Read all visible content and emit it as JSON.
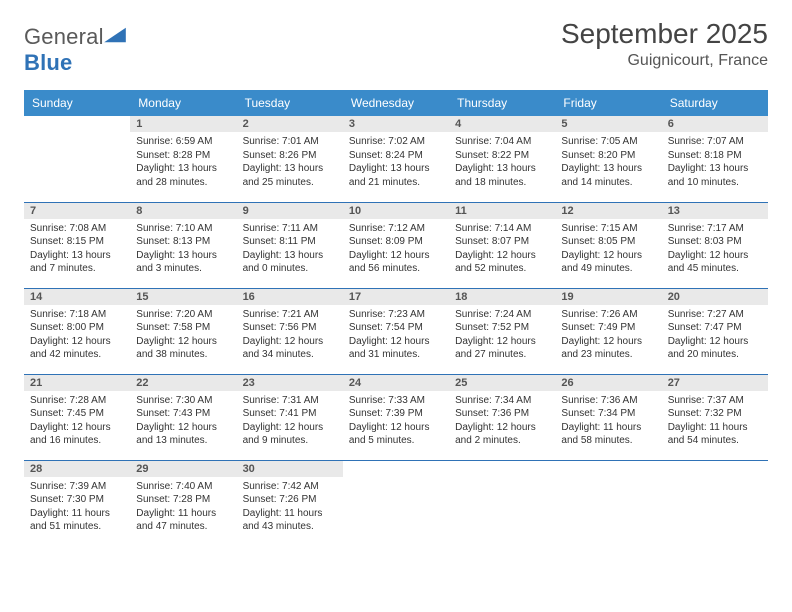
{
  "logo": {
    "general": "General",
    "blue": "Blue"
  },
  "header": {
    "title": "September 2025",
    "location": "Guignicourt, France"
  },
  "colors": {
    "header_bg": "#3a8bca",
    "header_text": "#ffffff",
    "daynum_bg": "#e9e9e9",
    "row_border": "#2f72b6",
    "logo_accent": "#2f72b6"
  },
  "weekdays": [
    "Sunday",
    "Monday",
    "Tuesday",
    "Wednesday",
    "Thursday",
    "Friday",
    "Saturday"
  ],
  "weeks": [
    [
      {
        "n": "",
        "sr": "",
        "ss": "",
        "dl": ""
      },
      {
        "n": "1",
        "sr": "Sunrise: 6:59 AM",
        "ss": "Sunset: 8:28 PM",
        "dl": "Daylight: 13 hours and 28 minutes."
      },
      {
        "n": "2",
        "sr": "Sunrise: 7:01 AM",
        "ss": "Sunset: 8:26 PM",
        "dl": "Daylight: 13 hours and 25 minutes."
      },
      {
        "n": "3",
        "sr": "Sunrise: 7:02 AM",
        "ss": "Sunset: 8:24 PM",
        "dl": "Daylight: 13 hours and 21 minutes."
      },
      {
        "n": "4",
        "sr": "Sunrise: 7:04 AM",
        "ss": "Sunset: 8:22 PM",
        "dl": "Daylight: 13 hours and 18 minutes."
      },
      {
        "n": "5",
        "sr": "Sunrise: 7:05 AM",
        "ss": "Sunset: 8:20 PM",
        "dl": "Daylight: 13 hours and 14 minutes."
      },
      {
        "n": "6",
        "sr": "Sunrise: 7:07 AM",
        "ss": "Sunset: 8:18 PM",
        "dl": "Daylight: 13 hours and 10 minutes."
      }
    ],
    [
      {
        "n": "7",
        "sr": "Sunrise: 7:08 AM",
        "ss": "Sunset: 8:15 PM",
        "dl": "Daylight: 13 hours and 7 minutes."
      },
      {
        "n": "8",
        "sr": "Sunrise: 7:10 AM",
        "ss": "Sunset: 8:13 PM",
        "dl": "Daylight: 13 hours and 3 minutes."
      },
      {
        "n": "9",
        "sr": "Sunrise: 7:11 AM",
        "ss": "Sunset: 8:11 PM",
        "dl": "Daylight: 13 hours and 0 minutes."
      },
      {
        "n": "10",
        "sr": "Sunrise: 7:12 AM",
        "ss": "Sunset: 8:09 PM",
        "dl": "Daylight: 12 hours and 56 minutes."
      },
      {
        "n": "11",
        "sr": "Sunrise: 7:14 AM",
        "ss": "Sunset: 8:07 PM",
        "dl": "Daylight: 12 hours and 52 minutes."
      },
      {
        "n": "12",
        "sr": "Sunrise: 7:15 AM",
        "ss": "Sunset: 8:05 PM",
        "dl": "Daylight: 12 hours and 49 minutes."
      },
      {
        "n": "13",
        "sr": "Sunrise: 7:17 AM",
        "ss": "Sunset: 8:03 PM",
        "dl": "Daylight: 12 hours and 45 minutes."
      }
    ],
    [
      {
        "n": "14",
        "sr": "Sunrise: 7:18 AM",
        "ss": "Sunset: 8:00 PM",
        "dl": "Daylight: 12 hours and 42 minutes."
      },
      {
        "n": "15",
        "sr": "Sunrise: 7:20 AM",
        "ss": "Sunset: 7:58 PM",
        "dl": "Daylight: 12 hours and 38 minutes."
      },
      {
        "n": "16",
        "sr": "Sunrise: 7:21 AM",
        "ss": "Sunset: 7:56 PM",
        "dl": "Daylight: 12 hours and 34 minutes."
      },
      {
        "n": "17",
        "sr": "Sunrise: 7:23 AM",
        "ss": "Sunset: 7:54 PM",
        "dl": "Daylight: 12 hours and 31 minutes."
      },
      {
        "n": "18",
        "sr": "Sunrise: 7:24 AM",
        "ss": "Sunset: 7:52 PM",
        "dl": "Daylight: 12 hours and 27 minutes."
      },
      {
        "n": "19",
        "sr": "Sunrise: 7:26 AM",
        "ss": "Sunset: 7:49 PM",
        "dl": "Daylight: 12 hours and 23 minutes."
      },
      {
        "n": "20",
        "sr": "Sunrise: 7:27 AM",
        "ss": "Sunset: 7:47 PM",
        "dl": "Daylight: 12 hours and 20 minutes."
      }
    ],
    [
      {
        "n": "21",
        "sr": "Sunrise: 7:28 AM",
        "ss": "Sunset: 7:45 PM",
        "dl": "Daylight: 12 hours and 16 minutes."
      },
      {
        "n": "22",
        "sr": "Sunrise: 7:30 AM",
        "ss": "Sunset: 7:43 PM",
        "dl": "Daylight: 12 hours and 13 minutes."
      },
      {
        "n": "23",
        "sr": "Sunrise: 7:31 AM",
        "ss": "Sunset: 7:41 PM",
        "dl": "Daylight: 12 hours and 9 minutes."
      },
      {
        "n": "24",
        "sr": "Sunrise: 7:33 AM",
        "ss": "Sunset: 7:39 PM",
        "dl": "Daylight: 12 hours and 5 minutes."
      },
      {
        "n": "25",
        "sr": "Sunrise: 7:34 AM",
        "ss": "Sunset: 7:36 PM",
        "dl": "Daylight: 12 hours and 2 minutes."
      },
      {
        "n": "26",
        "sr": "Sunrise: 7:36 AM",
        "ss": "Sunset: 7:34 PM",
        "dl": "Daylight: 11 hours and 58 minutes."
      },
      {
        "n": "27",
        "sr": "Sunrise: 7:37 AM",
        "ss": "Sunset: 7:32 PM",
        "dl": "Daylight: 11 hours and 54 minutes."
      }
    ],
    [
      {
        "n": "28",
        "sr": "Sunrise: 7:39 AM",
        "ss": "Sunset: 7:30 PM",
        "dl": "Daylight: 11 hours and 51 minutes."
      },
      {
        "n": "29",
        "sr": "Sunrise: 7:40 AM",
        "ss": "Sunset: 7:28 PM",
        "dl": "Daylight: 11 hours and 47 minutes."
      },
      {
        "n": "30",
        "sr": "Sunrise: 7:42 AM",
        "ss": "Sunset: 7:26 PM",
        "dl": "Daylight: 11 hours and 43 minutes."
      },
      {
        "n": "",
        "sr": "",
        "ss": "",
        "dl": ""
      },
      {
        "n": "",
        "sr": "",
        "ss": "",
        "dl": ""
      },
      {
        "n": "",
        "sr": "",
        "ss": "",
        "dl": ""
      },
      {
        "n": "",
        "sr": "",
        "ss": "",
        "dl": ""
      }
    ]
  ]
}
